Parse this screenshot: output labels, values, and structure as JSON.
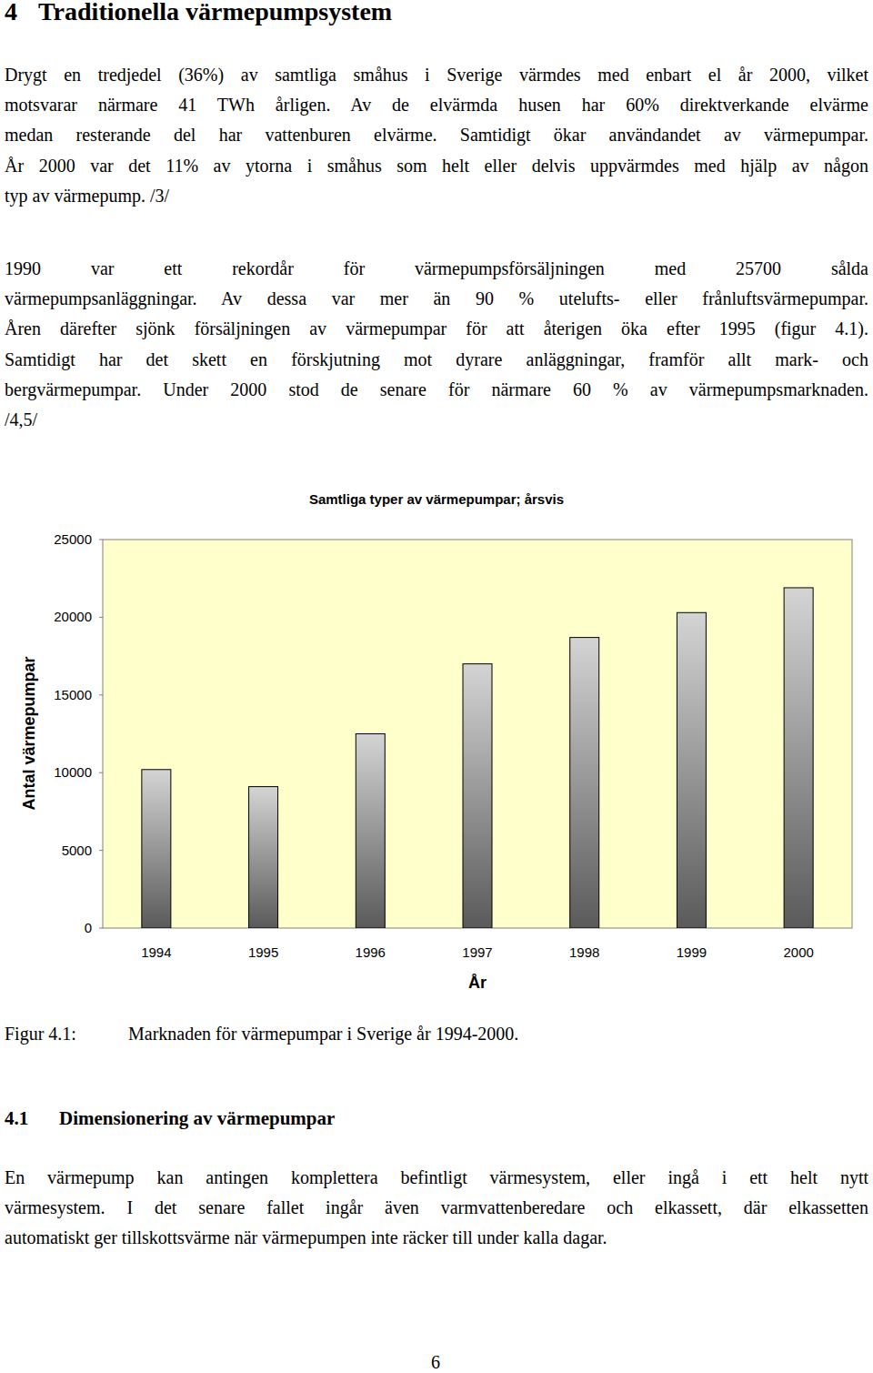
{
  "heading": {
    "number": "4",
    "title": "Traditionella värmepumpsystem"
  },
  "paragraphs": [
    [
      "Drygt en tredjedel (36%) av samtliga småhus i Sverige värmdes med enbart el år 2000, vilket",
      "motsvarar närmare 41 TWh årligen. Av de elvärmda husen har 60% direktverkande elvärme",
      "medan resterande del har vattenburen elvärme. Samtidigt ökar användandet av värmepumpar.",
      "År 2000 var det 11% av ytorna i småhus som helt eller delvis uppvärmdes med hjälp av någon",
      "typ av värmepump. /3/"
    ],
    [
      "1990 var ett rekordår för värmepumpsförsäljningen med 25700 sålda",
      "värmepumpsanläggningar. Av dessa var mer än 90 % utelufts- eller frånluftsvärmepumpar.",
      "Åren därefter sjönk försäljningen av värmepumpar för att återigen öka efter 1995 (figur 4.1).",
      "Samtidigt har det skett en förskjutning mot dyrare anläggningar, framför allt mark- och",
      "bergvärmepumpar. Under 2000 stod de senare för närmare 60 % av värmepumpsmarknaden.",
      "/4,5/"
    ]
  ],
  "chart_data": {
    "type": "bar",
    "title": "Samtliga typer av värmepumpar; årsvis",
    "x_label": "År",
    "y_label": "Antal värmepumpar",
    "categories": [
      "1994",
      "1995",
      "1996",
      "1997",
      "1998",
      "1999",
      "2000"
    ],
    "values": [
      10200,
      9100,
      12500,
      17000,
      18700,
      20300,
      21900
    ],
    "color": "#5a5a5a",
    "ylim": [
      0,
      25000
    ],
    "yticks": [
      0,
      5000,
      10000,
      15000,
      20000,
      25000
    ],
    "grid": false
  },
  "caption": {
    "label": "Figur 4.1:",
    "text": "Marknaden för värmepumpar i Sverige år 1994-2000."
  },
  "section": {
    "number": "4.1",
    "title": "Dimensionering av värmepumpar",
    "paragraphs": [
      [
        "En värmepump kan antingen komplettera befintligt värmesystem, eller ingå i ett helt nytt",
        "värmesystem. I det senare fallet ingår även varmvattenberedare och elkassett, där elkassetten",
        "automatiskt ger tillskottsvärme när värmepumpen inte räcker till under kalla dagar."
      ]
    ]
  },
  "page_number": "6"
}
